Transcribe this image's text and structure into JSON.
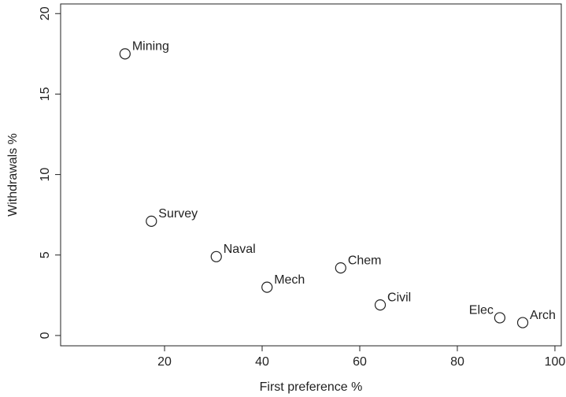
{
  "chart_data": {
    "type": "scatter",
    "x_label": "First preference %",
    "y_label": "Withdrawals %",
    "labels": [
      "Mining",
      "Survey",
      "Naval",
      "Mech",
      "Chem",
      "Civil",
      "Elec",
      "Arch"
    ],
    "x": [
      11.9,
      17.3,
      30.6,
      41.0,
      56.1,
      64.2,
      88.7,
      93.4
    ],
    "values": [
      17.5,
      7.1,
      4.9,
      3.0,
      4.2,
      1.9,
      1.1,
      0.8
    ],
    "color": "#222222",
    "xlim": [
      -1.3,
      101.3
    ],
    "xticks": [
      20,
      40,
      60,
      80,
      100
    ],
    "ylim": [
      -0.64,
      20.6
    ],
    "yticks": [
      0,
      5,
      10,
      15,
      20
    ]
  }
}
